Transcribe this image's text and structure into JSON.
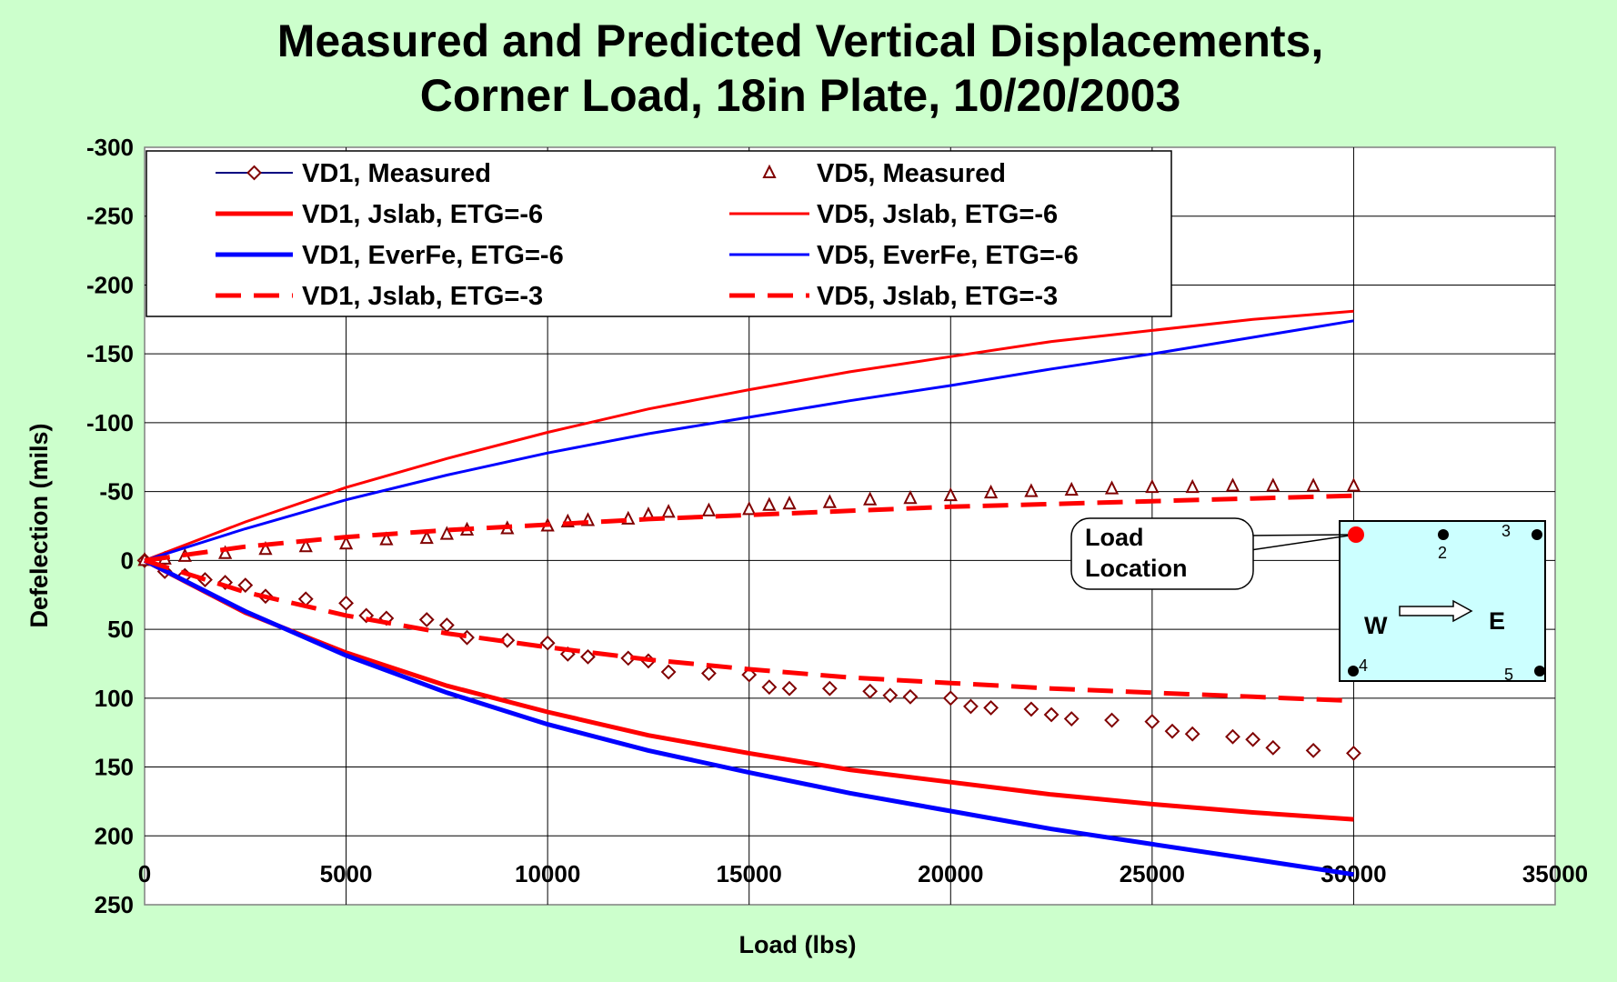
{
  "chart_data": {
    "type": "line",
    "title_lines": [
      "Measured and Predicted Vertical Displacements,",
      "Corner Load, 18in Plate, 10/20/2003"
    ],
    "xlabel": "Load (lbs)",
    "ylabel": "Defelection (mils)",
    "xlim": [
      0,
      35000
    ],
    "ylim": [
      -300,
      250
    ],
    "y_inverted": true,
    "x_ticks": [
      0,
      5000,
      10000,
      15000,
      20000,
      25000,
      30000,
      35000
    ],
    "y_ticks": [
      -300,
      -250,
      -200,
      -150,
      -100,
      -50,
      0,
      50,
      100,
      150,
      200,
      250
    ],
    "grid": true,
    "legend_position": "top",
    "colors": {
      "background": "#ccffcc",
      "plot_area": "#ffffff",
      "measured": "#800000",
      "jslab": "#ff0000",
      "everfe": "#0000ff",
      "inset_fill": "#ccffff"
    },
    "series": [
      {
        "name": "VD1, Measured",
        "marker": "diamond",
        "color": "#800000",
        "x": [
          0,
          500,
          1000,
          1500,
          2000,
          2500,
          3000,
          4000,
          5000,
          5500,
          6000,
          7000,
          7500,
          8000,
          9000,
          10000,
          10500,
          11000,
          12000,
          12500,
          13000,
          14000,
          15000,
          15500,
          16000,
          17000,
          18000,
          18500,
          19000,
          20000,
          20500,
          21000,
          22000,
          22500,
          23000,
          24000,
          25000,
          25500,
          26000,
          27000,
          27500,
          28000,
          29000,
          30000
        ],
        "y": [
          0,
          8,
          11,
          14,
          16,
          18,
          26,
          28,
          31,
          40,
          42,
          43,
          47,
          56,
          58,
          60,
          68,
          70,
          71,
          73,
          81,
          82,
          83,
          92,
          93,
          93,
          95,
          98,
          99,
          100,
          106,
          107,
          108,
          112,
          115,
          116,
          117,
          124,
          126,
          128,
          130,
          136,
          138,
          140
        ]
      },
      {
        "name": "VD5, Measured",
        "marker": "triangle",
        "color": "#800000",
        "x": [
          0,
          500,
          1000,
          2000,
          3000,
          4000,
          5000,
          6000,
          7000,
          7500,
          8000,
          9000,
          10000,
          10500,
          11000,
          12000,
          12500,
          13000,
          14000,
          15000,
          15500,
          16000,
          17000,
          18000,
          19000,
          20000,
          21000,
          22000,
          23000,
          24000,
          25000,
          26000,
          27000,
          28000,
          29000,
          30000
        ],
        "y": [
          0,
          -1,
          -3,
          -5,
          -8,
          -10,
          -12,
          -15,
          -16,
          -19,
          -22,
          -23,
          -25,
          -28,
          -29,
          -30,
          -33,
          -35,
          -36,
          -37,
          -40,
          -41,
          -42,
          -44,
          -45,
          -47,
          -49,
          -50,
          -51,
          -52,
          -53,
          -53,
          -54,
          -54,
          -54,
          -54
        ]
      },
      {
        "name": "VD1, Jslab, ETG=-6",
        "style": "solid",
        "width": 5,
        "color": "#ff0000",
        "x": [
          0,
          2500,
          5000,
          7500,
          10000,
          12500,
          15000,
          17500,
          20000,
          22500,
          25000,
          27500,
          30000
        ],
        "y": [
          0,
          38,
          67,
          91,
          110,
          127,
          140,
          152,
          161,
          170,
          177,
          183,
          188
        ]
      },
      {
        "name": "VD5, Jslab, ETG=-6",
        "style": "solid",
        "width": 3,
        "color": "#ff0000",
        "x": [
          0,
          2500,
          5000,
          7500,
          10000,
          12500,
          15000,
          17500,
          20000,
          22500,
          25000,
          27500,
          30000
        ],
        "y": [
          0,
          -28,
          -53,
          -74,
          -93,
          -110,
          -124,
          -137,
          -148,
          -159,
          -167,
          -175,
          -181
        ]
      },
      {
        "name": "VD1, EverFe, ETG=-6",
        "style": "solid",
        "width": 5,
        "color": "#0000ff",
        "x": [
          0,
          2500,
          5000,
          7500,
          10000,
          12500,
          15000,
          17500,
          20000,
          22500,
          25000,
          27500,
          30000
        ],
        "y": [
          0,
          37,
          69,
          96,
          119,
          138,
          154,
          169,
          182,
          195,
          206,
          217,
          228
        ]
      },
      {
        "name": "VD5, EverFe, ETG=-6",
        "style": "solid",
        "width": 3,
        "color": "#0000ff",
        "x": [
          0,
          2500,
          5000,
          7500,
          10000,
          12500,
          15000,
          17500,
          20000,
          22500,
          25000,
          27500,
          30000
        ],
        "y": [
          0,
          -23,
          -44,
          -62,
          -78,
          -92,
          -104,
          -116,
          -127,
          -139,
          -150,
          -162,
          -174
        ]
      },
      {
        "name": "VD1, Jslab, ETG=-3",
        "style": "dash",
        "width": 5,
        "color": "#ff0000",
        "x": [
          0,
          2500,
          5000,
          7500,
          10000,
          12500,
          15000,
          17500,
          20000,
          22500,
          25000,
          27500,
          30000
        ],
        "y": [
          0,
          23,
          40,
          53,
          63,
          72,
          79,
          85,
          89,
          93,
          96,
          99,
          102
        ]
      },
      {
        "name": "VD5, Jslab, ETG=-3",
        "style": "dash",
        "width": 5,
        "color": "#ff0000",
        "x": [
          0,
          2500,
          5000,
          7500,
          10000,
          12500,
          15000,
          17500,
          20000,
          22500,
          25000,
          27500,
          30000
        ],
        "y": [
          0,
          -10,
          -17,
          -22,
          -26,
          -30,
          -33,
          -36,
          -39,
          -41,
          -43,
          -45,
          -47
        ]
      }
    ],
    "inset": {
      "callout": [
        "Load",
        "Location"
      ],
      "W": "W",
      "E": "E",
      "sensor_labels": [
        "2",
        "3",
        "4",
        "5"
      ]
    }
  }
}
